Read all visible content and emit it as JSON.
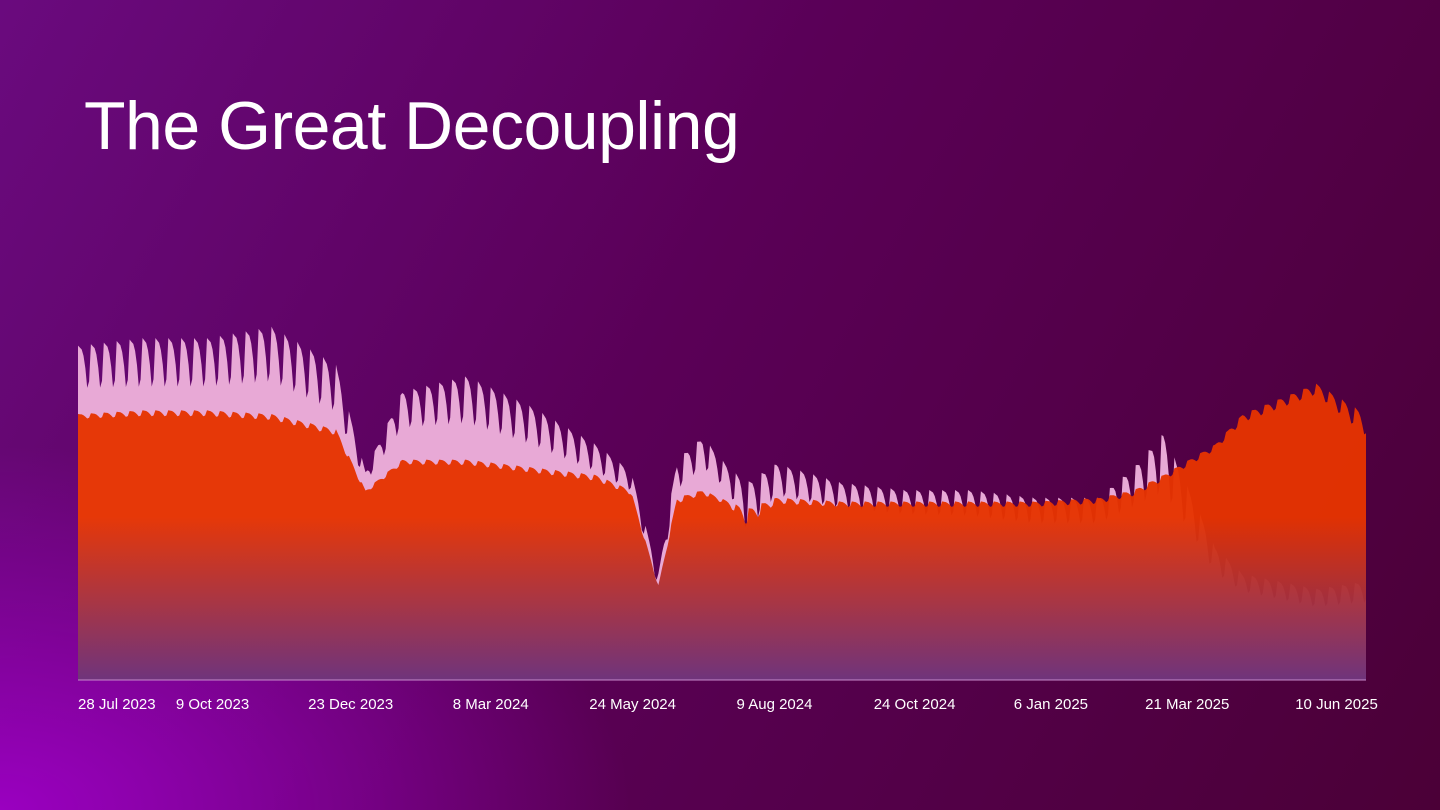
{
  "slide": {
    "title": "The Great Decoupling"
  },
  "colors": {
    "background_start": "#6a0a7e",
    "background_end": "#4b0037",
    "glow": "#9a00c0",
    "series_a_fill": "#e8a9d6",
    "series_b_fill_top": "#e63300",
    "series_b_fill_bottom": "#6a2f78",
    "axis": "#c78acb",
    "text": "#ffffff"
  },
  "chart_data": {
    "type": "area",
    "title": "",
    "xlabel": "",
    "ylabel": "",
    "x_range": [
      "2023-07-28",
      "2025-06-26"
    ],
    "y_range": [
      0,
      100
    ],
    "grid": false,
    "legend": "none",
    "x_ticks": [
      "28 Jul 2023",
      "9 Oct 2023",
      "23 Dec 2023",
      "8 Mar 2024",
      "24 May 2024",
      "9 Aug 2024",
      "24 Oct 2024",
      "6 Jan 2025",
      "21 Mar 2025",
      "10 Jun 2025"
    ],
    "x_tick_dates": [
      "2023-07-28",
      "2023-10-09",
      "2023-12-23",
      "2024-03-08",
      "2024-05-24",
      "2024-08-09",
      "2024-10-24",
      "2025-01-06",
      "2025-03-21",
      "2025-06-10"
    ],
    "weekly_cycle": {
      "series_a_weekday_peak_ratio": [
        1.0,
        0.98,
        0.96,
        0.9,
        0.78,
        0.6,
        0.66
      ],
      "series_b_weekday_peak_ratio": [
        1.0,
        0.99,
        0.98,
        0.95,
        0.9,
        0.84,
        0.86
      ]
    },
    "series": [
      {
        "key": "a",
        "color": "#e8a9d6",
        "peak_dates": [
          "2023-07-28",
          "2023-09-01",
          "2023-10-06",
          "2023-11-10",
          "2023-12-15",
          "2023-12-31",
          "2024-01-20",
          "2024-02-24",
          "2024-03-30",
          "2024-05-04",
          "2024-05-23",
          "2024-06-07",
          "2024-06-17",
          "2024-07-01",
          "2024-07-15",
          "2024-07-25",
          "2024-08-10",
          "2024-09-14",
          "2024-10-19",
          "2024-11-23",
          "2024-12-28",
          "2025-02-01",
          "2025-02-20",
          "2025-03-08",
          "2025-03-22",
          "2025-04-05",
          "2025-04-20",
          "2025-05-10",
          "2025-05-30",
          "2025-06-26"
        ],
        "peak_values": [
          88,
          90,
          90,
          93,
          83,
          55,
          76,
          80,
          72,
          62,
          55,
          28,
          58,
          64,
          56,
          52,
          57,
          52,
          50,
          50,
          48,
          48,
          56,
          65,
          50,
          35,
          28,
          26,
          24,
          26
        ],
        "trough_values": [
          60,
          58,
          58,
          57,
          52,
          47,
          52,
          49,
          47,
          44,
          42,
          18,
          38,
          44,
          40,
          20,
          36,
          35,
          34,
          33,
          31,
          31,
          30,
          26,
          24,
          18,
          16,
          14,
          12,
          12
        ]
      },
      {
        "key": "b",
        "color": "#e63300",
        "peak_dates": [
          "2023-07-28",
          "2023-09-01",
          "2023-10-06",
          "2023-11-10",
          "2023-12-15",
          "2023-12-31",
          "2024-01-20",
          "2024-02-24",
          "2024-03-30",
          "2024-05-04",
          "2024-05-23",
          "2024-06-07",
          "2024-06-17",
          "2024-07-01",
          "2024-07-15",
          "2024-07-25",
          "2024-08-10",
          "2024-09-14",
          "2024-10-19",
          "2024-11-23",
          "2024-12-28",
          "2025-02-01",
          "2025-02-20",
          "2025-03-08",
          "2025-03-22",
          "2025-04-05",
          "2025-04-20",
          "2025-05-10",
          "2025-05-30",
          "2025-06-26"
        ],
        "peak_values": [
          70,
          71,
          71,
          70,
          66,
          50,
          58,
          58,
          56,
          54,
          50,
          25,
          48,
          50,
          47,
          45,
          48,
          47,
          47,
          47,
          47,
          48,
          50,
          54,
          58,
          62,
          70,
          74,
          78,
          70
        ],
        "trough_values": [
          62,
          61,
          61,
          60,
          56,
          44,
          50,
          49,
          47,
          44,
          42,
          20,
          38,
          42,
          40,
          18,
          38,
          38,
          38,
          38,
          38,
          38,
          40,
          44,
          48,
          52,
          56,
          58,
          60,
          34
        ]
      }
    ]
  }
}
